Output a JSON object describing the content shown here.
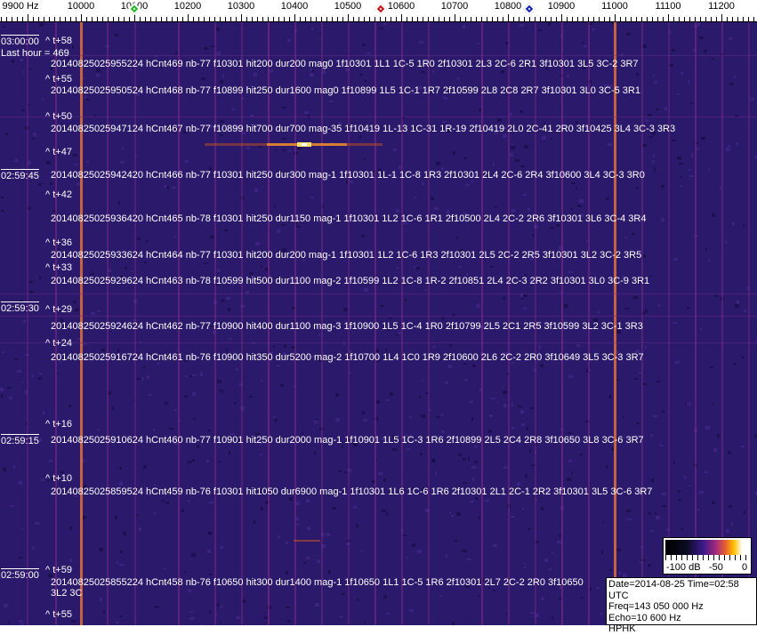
{
  "ruler": {
    "ticks": [
      "9900 Hz",
      "10000",
      "10100",
      "10200",
      "10300",
      "10400",
      "10500",
      "10600",
      "10700",
      "10800",
      "10900",
      "11000",
      "11100",
      "11200"
    ],
    "markers": [
      {
        "name": "green-marker",
        "color": "#22bb22"
      },
      {
        "name": "red-marker",
        "color": "#cc1111"
      },
      {
        "name": "blue-marker",
        "color": "#1122bb"
      }
    ]
  },
  "colors": {
    "background": "#2b1a6c",
    "strong_line": "#e0703a"
  },
  "times": [
    "03:00:00",
    "02:59:45",
    "02:59:30",
    "02:59:15",
    "02:59:00"
  ],
  "last_hour": "Last hour = 469",
  "offsets": [
    "^ t+58",
    "^ t+55",
    "^ t+50",
    "^ t+47",
    "^ t+42",
    "^ t+36",
    "^ t+33",
    "^ t+29",
    "^ t+24",
    "^ t+16",
    "^ t+10",
    "^ t+59",
    "^ t+55"
  ],
  "detections": [
    "20140825025955224 hCnt469 nb-77 f10301 hit200 dur200 mag0 1f10301 1L1 1C-5 1R0 2f10301 2L3 2C-6 2R1 3f10301 3L5 3C-2 3R7",
    "20140825025950524 hCnt468 nb-77 f10899 hit250 dur1600 mag0 1f10899 1L5 1C-1 1R7 2f10599 2L8 2C8 2R7 3f10301 3L0 3C-5 3R1",
    "20140825025947124 hCnt467 nb-77 f10899 hit700 dur700 mag-35 1f10419 1L-13 1C-31 1R-19 2f10419 2L0 2C-41 2R0 3f10425 3L4 3C-3 3R3",
    "20140825025942420 hCnt466 nb-77 f10301 hit250 dur300 mag-1 1f10301 1L-1 1C-8 1R3 2f10301 2L4 2C-6 2R4 3f10600 3L4 3C-3 3R0",
    "20140825025936420 hCnt465 nb-78 f10301 hit250 dur1150 mag-1 1f10301 1L2 1C-6 1R1 2f10500 2L4 2C-2 2R6 3f10301 3L6 3C-4 3R4",
    "20140825025933624 hCnt464 nb-77 f10301 hit200 dur200 mag-1 1f10301 1L2 1C-6 1R3 2f10301 2L5 2C-2 2R5 3f10301 3L2 3C-2 3R5",
    "20140825025929624 hCnt463 nb-78 f10599 hit500 dur1100 mag-2 1f10599 1L2 1C-8 1R-2 2f10851 2L4 2C-3 2R2 3f10301 3L0 3C-9 3R1",
    "20140825025924624 hCnt462 nb-77 f10900 hit400 dur1100 mag-3 1f10900 1L5 1C-4 1R0 2f10799 2L5 2C1 2R5 3f10599 3L2 3C-1 3R3",
    "20140825025916724 hCnt461 nb-76 f10900 hit350 dur5200 mag-2 1f10700 1L4 1C0 1R9 2f10600 2L6 2C-2 2R0 3f10649 3L5 3C-3 3R7",
    "20140825025910624 hCnt460 nb-77 f10901 hit250 dur2000 mag-1 1f10901 1L5 1C-3 1R6 2f10899 2L5 2C4 2R8 3f10650 3L8 3C-6 3R7",
    "20140825025859524 hCnt459 nb-76 f10301 hit1050 dur6900 mag-1 1f10301 1L6 1C-6 1R6 2f10301 2L1 2C-1 2R2 3f10301 3L5 3C-6 3R7",
    "20140825025855224 hCnt458 nb-76 f10650 hit300 dur1400 mag-1 1f10650 1L1 1C-5 1R6 2f10301 2L7 2C-2 2R0 3f10650 3L2 3C"
  ],
  "colorbar": {
    "labels": [
      "-100 dB",
      "-50",
      "0"
    ]
  },
  "info": {
    "date_time": "Date=2014-08-25 Time=02:58 UTC",
    "freq": "Freq=143 050 000 Hz",
    "echo": "Echo=10 600 Hz",
    "station": "HPHK"
  }
}
